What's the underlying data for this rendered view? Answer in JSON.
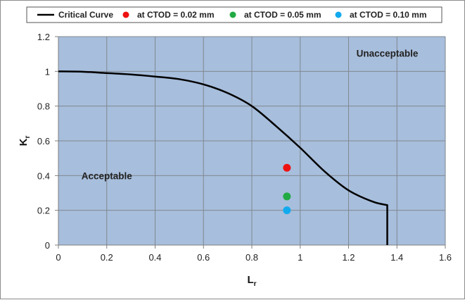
{
  "chart_data": {
    "type": "scatter",
    "title": "",
    "xlabel": "L",
    "xlabel_sub": "r",
    "ylabel": "K",
    "ylabel_sub": "r",
    "xlim": [
      0,
      1.6
    ],
    "ylim": [
      0,
      1.2
    ],
    "xticks": [
      0,
      0.2,
      0.4,
      0.6,
      0.8,
      1,
      1.2,
      1.4,
      1.6
    ],
    "yticks": [
      0,
      0.2,
      0.4,
      0.6,
      0.8,
      1,
      1.2
    ],
    "xtick_labels": [
      "0",
      "0.2",
      "0.4",
      "0.6",
      "0.8",
      "1",
      "1.2",
      "1.4",
      "1.6"
    ],
    "ytick_labels": [
      "0",
      "0.2",
      "0.4",
      "0.6",
      "0.8",
      "1",
      "1.2"
    ],
    "grid": true,
    "legend_position": "top",
    "plot_background": "#a7bedc",
    "series": [
      {
        "name": "Critical Curve",
        "kind": "line",
        "color": "#000000",
        "x": [
          0,
          0.1,
          0.2,
          0.3,
          0.4,
          0.5,
          0.6,
          0.7,
          0.8,
          0.9,
          1.0,
          1.1,
          1.2,
          1.3,
          1.36,
          1.36
        ],
        "y": [
          1.0,
          0.998,
          0.99,
          0.982,
          0.97,
          0.955,
          0.925,
          0.875,
          0.8,
          0.685,
          0.56,
          0.425,
          0.315,
          0.25,
          0.23,
          0
        ]
      },
      {
        "name": "at CTOD = 0.02 mm",
        "kind": "point",
        "color": "#ee1111",
        "x": [
          0.945
        ],
        "y": [
          0.445
        ]
      },
      {
        "name": "at CTOD = 0.05 mm",
        "kind": "point",
        "color": "#22aa44",
        "x": [
          0.945
        ],
        "y": [
          0.28
        ]
      },
      {
        "name": "at CTOD = 0.10 mm",
        "kind": "point",
        "color": "#11aaee",
        "x": [
          0.945
        ],
        "y": [
          0.2
        ]
      }
    ],
    "annotations": [
      {
        "text": "Unacceptable",
        "x": 1.36,
        "y": 1.105
      },
      {
        "text": "Acceptable",
        "x": 0.2,
        "y": 0.4
      }
    ]
  }
}
